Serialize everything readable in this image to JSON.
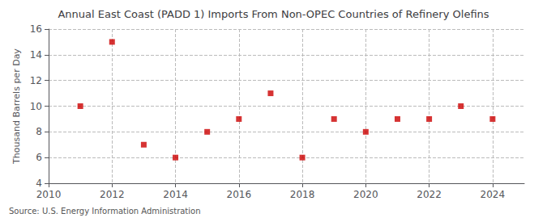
{
  "chart_data": {
    "type": "scatter",
    "title": "Annual East Coast (PADD 1) Imports From Non-OPEC Countries of Refinery Olefins",
    "ylabel": "Thousand Barrels per Day",
    "annotations": [
      "Source: U.S. Energy Information Administration"
    ],
    "x": [
      2011,
      2012,
      2013,
      2014,
      2015,
      2016,
      2017,
      2018,
      2019,
      2020,
      2021,
      2022,
      2023,
      2024
    ],
    "values": [
      10,
      15,
      7,
      6,
      8,
      9,
      11,
      6,
      9,
      8,
      9,
      9,
      10,
      9
    ],
    "color": "#cc0000",
    "marker": "square",
    "xlim": [
      2010,
      2025
    ],
    "xticks": [
      2010,
      2012,
      2014,
      2016,
      2018,
      2020,
      2022,
      2024
    ],
    "ylim": [
      4,
      16
    ],
    "yticks": [
      4,
      6,
      8,
      10,
      12,
      14,
      16
    ],
    "grid": true
  }
}
